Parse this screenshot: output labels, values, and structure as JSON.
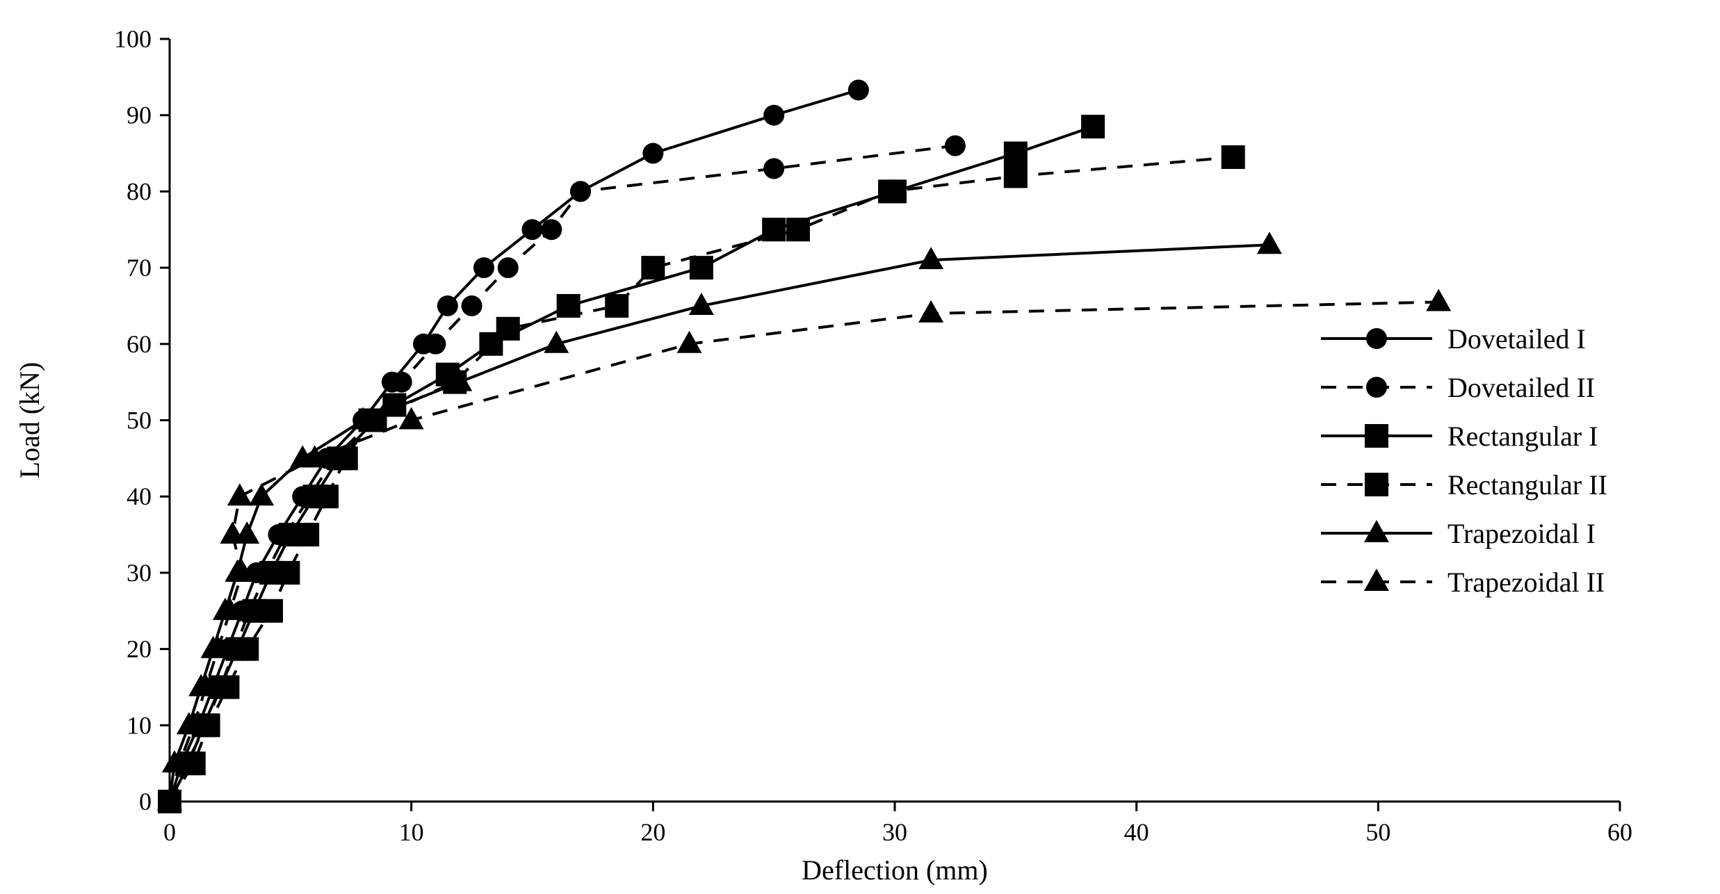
{
  "chart_data": {
    "type": "line",
    "title": "",
    "xlabel": "Deflection (mm)",
    "ylabel": "Load (kN)",
    "xlim": [
      0,
      60
    ],
    "ylim": [
      0,
      100
    ],
    "xticks": [
      0,
      10,
      20,
      30,
      40,
      50,
      60
    ],
    "yticks": [
      0,
      10,
      20,
      30,
      40,
      50,
      60,
      70,
      80,
      90,
      100
    ],
    "grid": false,
    "legend_position": "right",
    "series": [
      {
        "name": "Dovetailed I",
        "marker": "circle",
        "linestyle": "solid",
        "x": [
          0,
          0.5,
          1.2,
          1.8,
          2.4,
          3.0,
          3.6,
          4.5,
          5.5,
          6.5,
          8.0,
          9.2,
          10.5,
          11.5,
          13.0,
          15.0,
          17.0,
          20.0,
          25.0,
          28.5
        ],
        "y": [
          0,
          5,
          10,
          15,
          20,
          25,
          30,
          35,
          40,
          45,
          50,
          55,
          60,
          65,
          70,
          75,
          80,
          85,
          90,
          93.3
        ]
      },
      {
        "name": "Dovetailed II",
        "marker": "circle",
        "linestyle": "dashed",
        "x": [
          0,
          0.7,
          1.5,
          2.1,
          2.7,
          3.3,
          4.0,
          4.8,
          5.8,
          6.8,
          8.4,
          9.6,
          11.0,
          12.5,
          14.0,
          15.8,
          17.0,
          25.0,
          32.5
        ],
        "y": [
          0,
          5,
          10,
          15,
          20,
          25,
          30,
          35,
          40,
          45,
          50,
          55,
          60,
          65,
          70,
          75,
          80,
          83,
          86
        ]
      },
      {
        "name": "Rectangular I",
        "marker": "square",
        "linestyle": "solid",
        "x": [
          0,
          0.8,
          1.4,
          2.1,
          2.8,
          3.5,
          4.2,
          5.0,
          6.0,
          7.0,
          8.5,
          9.3,
          11.5,
          13.3,
          16.5,
          22.0,
          25.0,
          30.0,
          35.0,
          38.2
        ],
        "y": [
          0,
          5,
          10,
          15,
          20,
          25,
          30,
          35,
          40,
          45,
          50,
          52,
          56,
          60,
          65,
          70,
          75,
          80,
          85,
          88.5
        ]
      },
      {
        "name": "Rectangular II",
        "marker": "square",
        "linestyle": "dashed",
        "x": [
          0,
          1.0,
          1.6,
          2.4,
          3.2,
          4.2,
          4.9,
          5.7,
          6.5,
          7.3,
          8.3,
          11.8,
          14.0,
          18.5,
          20.0,
          26.0,
          29.8,
          35.0,
          44.0
        ],
        "y": [
          0,
          5,
          10,
          15,
          20,
          25,
          30,
          35,
          40,
          45,
          50,
          55,
          62,
          65,
          70,
          75,
          80,
          82,
          84.5
        ]
      },
      {
        "name": "Trapezoidal I",
        "marker": "triangle",
        "linestyle": "solid",
        "x": [
          0,
          0.2,
          0.8,
          1.3,
          1.8,
          2.3,
          2.8,
          3.2,
          3.8,
          5.5,
          8.0,
          12.0,
          16.0,
          22.0,
          31.5,
          45.5
        ],
        "y": [
          0,
          5,
          10,
          15,
          20,
          25,
          30,
          35,
          40,
          45,
          50,
          55,
          60,
          65,
          71,
          73
        ]
      },
      {
        "name": "Trapezoidal II",
        "marker": "triangle",
        "linestyle": "dashed",
        "x": [
          0,
          0.4,
          1.0,
          1.5,
          2.0,
          2.5,
          3.0,
          2.6,
          2.9,
          6.0,
          10.0,
          21.5,
          31.5,
          52.5
        ],
        "y": [
          0,
          5,
          10,
          15,
          20,
          25,
          30,
          35,
          40,
          45,
          50,
          60,
          64,
          65.5
        ]
      }
    ]
  }
}
